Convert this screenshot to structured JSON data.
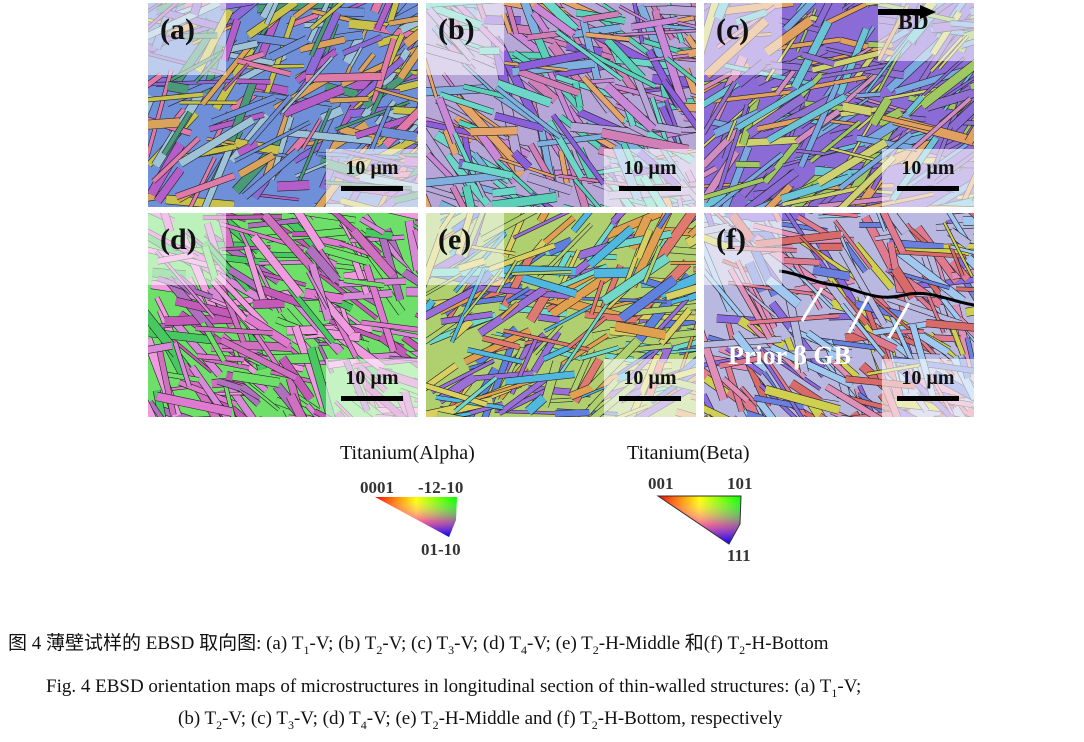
{
  "panels": [
    {
      "label": "(a)",
      "scale": "10 µm",
      "palette": [
        "#c9c24a",
        "#8d6bd6",
        "#6f8fd8",
        "#e07aa8",
        "#d9a35c",
        "#9ec3d9",
        "#4a9a7a",
        "#b45fc9"
      ]
    },
    {
      "label": "(b)",
      "scale": "10 µm",
      "palette": [
        "#6cd6c8",
        "#8b5fd9",
        "#b7a6d8",
        "#d07fb8",
        "#e4a46a",
        "#7fb0e0",
        "#cc88d8",
        "#5ad0b8"
      ]
    },
    {
      "label": "(c)",
      "scale": "10 µm",
      "palette": [
        "#6bc4d6",
        "#a0c860",
        "#8b6bd6",
        "#d28cc0",
        "#e0a060",
        "#7aa8e0",
        "#cfd070",
        "#9070d0"
      ],
      "annotation": "BD"
    },
    {
      "label": "(d)",
      "scale": "10 µm",
      "palette": [
        "#e07ad0",
        "#c45ab8",
        "#6ee06a",
        "#d88ad8",
        "#b070c0",
        "#f09ae0",
        "#48c860",
        "#d070c0"
      ]
    },
    {
      "label": "(e)",
      "scale": "10 µm",
      "palette": [
        "#e0a050",
        "#6080e0",
        "#b0d070",
        "#70d8c8",
        "#d8d060",
        "#9a70d8",
        "#e07a70",
        "#50b8e0"
      ]
    },
    {
      "label": "(f)",
      "scale": "10 µm",
      "palette": [
        "#8a6be0",
        "#e07a90",
        "#b8b8e0",
        "#d0d050",
        "#e090b8",
        "#6a80e0",
        "#d86a6a",
        "#a0c8f0"
      ],
      "annotation": "Prior β GB"
    }
  ],
  "legend": {
    "alpha": {
      "title": "Titanium(Alpha)",
      "corners": [
        "0001",
        "-12-10",
        "01-10"
      ]
    },
    "beta": {
      "title": "Titanium(Beta)",
      "corners": [
        "001",
        "101",
        "111"
      ]
    }
  },
  "caption": {
    "zh": [
      {
        "t": "图 4  薄壁试样的 EBSD 取向图: (a) T"
      },
      {
        "s": "1"
      },
      {
        "t": "-V; (b) T"
      },
      {
        "s": "2"
      },
      {
        "t": "-V; (c) T"
      },
      {
        "s": "3"
      },
      {
        "t": "-V; (d) T"
      },
      {
        "s": "4"
      },
      {
        "t": "-V; (e) T"
      },
      {
        "s": "2"
      },
      {
        "t": "-H-Middle 和(f) T"
      },
      {
        "s": "2"
      },
      {
        "t": "-H-Bottom"
      }
    ],
    "en1": [
      {
        "t": "Fig. 4 EBSD orientation maps of microstructures in longitudinal section of thin-walled structures: (a) T"
      },
      {
        "s": "1"
      },
      {
        "t": "-V;"
      }
    ],
    "en2": [
      {
        "t": "(b) T"
      },
      {
        "s": "2"
      },
      {
        "t": "-V; (c) T"
      },
      {
        "s": "3"
      },
      {
        "t": "-V; (d) T"
      },
      {
        "s": "4"
      },
      {
        "t": "-V; (e) T"
      },
      {
        "s": "2"
      },
      {
        "t": "-H-Middle and (f) T"
      },
      {
        "s": "2"
      },
      {
        "t": "-H-Bottom, respectively"
      }
    ]
  }
}
